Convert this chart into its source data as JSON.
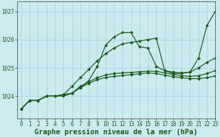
{
  "background_color": "#cce9f0",
  "grid_color": "#aad4dc",
  "line_color": "#1a5c1a",
  "title": "Graphe pression niveau de la mer (hPa)",
  "xlim": [
    -0.5,
    23
  ],
  "ylim": [
    1023.2,
    1027.35
  ],
  "yticks": [
    1024,
    1025,
    1026,
    1027
  ],
  "xticks": [
    0,
    1,
    2,
    3,
    4,
    5,
    6,
    7,
    8,
    9,
    10,
    11,
    12,
    13,
    14,
    15,
    16,
    17,
    18,
    19,
    20,
    21,
    22,
    23
  ],
  "series": [
    [
      1023.55,
      1023.85,
      1023.85,
      1024.0,
      1024.0,
      1024.0,
      1024.1,
      1024.3,
      1024.55,
      1025.05,
      1025.8,
      1026.1,
      1026.25,
      1026.25,
      1025.75,
      1025.7,
      1025.05,
      1024.9,
      1024.8,
      1024.8,
      1024.85,
      1025.35,
      1026.5,
      1027.0
    ],
    [
      1023.55,
      1023.85,
      1023.85,
      1024.0,
      1024.0,
      1024.05,
      1024.1,
      1024.35,
      1024.5,
      1024.65,
      1024.75,
      1024.8,
      1024.82,
      1024.84,
      1024.86,
      1024.88,
      1024.88,
      1024.82,
      1024.77,
      1024.72,
      1024.7,
      1024.72,
      1024.8,
      1024.9
    ],
    [
      1023.55,
      1023.85,
      1023.85,
      1024.0,
      1024.0,
      1024.05,
      1024.1,
      1024.3,
      1024.45,
      1024.58,
      1024.66,
      1024.7,
      1024.73,
      1024.76,
      1024.79,
      1024.82,
      1024.8,
      1024.74,
      1024.69,
      1024.65,
      1024.62,
      1024.62,
      1024.65,
      1024.72
    ],
    [
      1023.55,
      1023.85,
      1023.85,
      1024.0,
      1024.0,
      1024.05,
      1024.35,
      1024.65,
      1024.95,
      1025.25,
      1025.5,
      1025.7,
      1025.85,
      1025.9,
      1025.95,
      1026.0,
      1026.05,
      1024.9,
      1024.85,
      1024.82,
      1024.85,
      1025.0,
      1025.2,
      1025.35
    ]
  ],
  "marker": "D",
  "markersize": 2.0,
  "linewidth": 0.9,
  "title_fontsize": 7.5,
  "tick_fontsize": 5.5,
  "title_color": "#1a5c1a",
  "tick_color": "#1a5c1a",
  "axis_color": "#666666"
}
